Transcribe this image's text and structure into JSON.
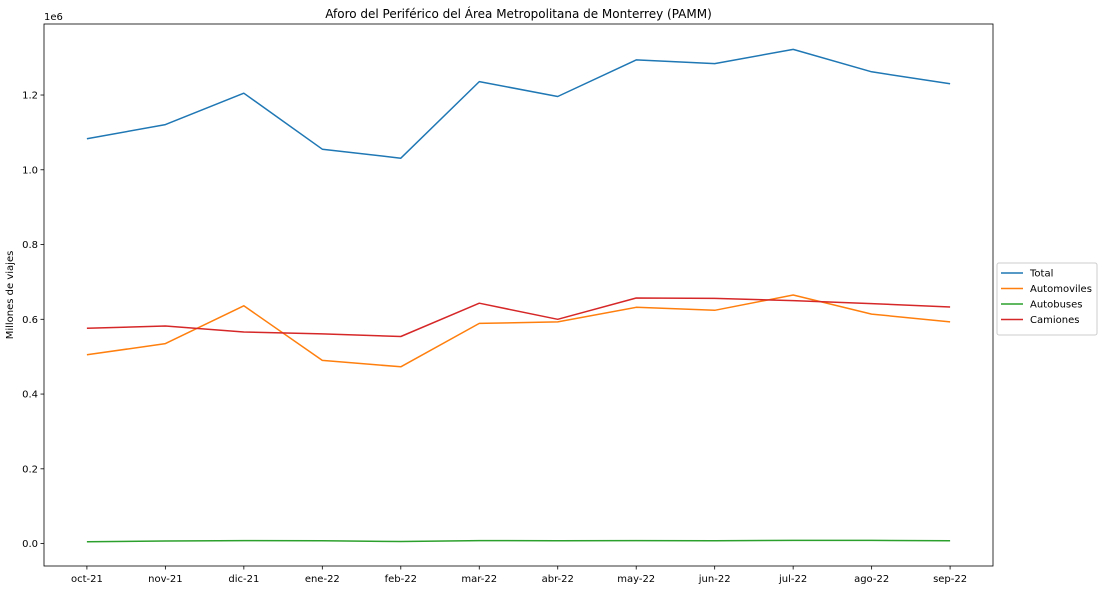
{
  "chart_data": {
    "type": "line",
    "title": "Aforo del Periférico del Área Metropolitana de Monterrey (PAMM)",
    "xlabel": "",
    "ylabel": "Millones de viajes",
    "y_offset_label": "1e6",
    "categories": [
      "oct-21",
      "nov-21",
      "dic-21",
      "ene-22",
      "feb-22",
      "mar-22",
      "abr-22",
      "may-22",
      "jun-22",
      "jul-22",
      "ago-22",
      "sep-22"
    ],
    "ylim": [
      -60000,
      1390000
    ],
    "yticks": [
      0,
      200000,
      400000,
      600000,
      800000,
      1000000,
      1200000
    ],
    "ytick_labels": [
      "0.0",
      "0.2",
      "0.4",
      "0.6",
      "0.8",
      "1.0",
      "1.2"
    ],
    "grid": false,
    "legend_position": "outside-right",
    "series": [
      {
        "name": "Total",
        "color": "#1f77b4",
        "values": [
          1083000,
          1121000,
          1205000,
          1055000,
          1031000,
          1236000,
          1196000,
          1294000,
          1284000,
          1322000,
          1262000,
          1230000
        ]
      },
      {
        "name": "Automoviles",
        "color": "#ff7f0e",
        "values": [
          505000,
          535000,
          636000,
          490000,
          473000,
          589000,
          593000,
          632000,
          624000,
          665000,
          614000,
          593000
        ]
      },
      {
        "name": "Autobuses",
        "color": "#2ca02c",
        "values": [
          5000,
          7000,
          8000,
          7500,
          5500,
          8000,
          7500,
          8000,
          7500,
          8500,
          8500,
          7500
        ]
      },
      {
        "name": "Camiones",
        "color": "#d62728",
        "values": [
          576000,
          582000,
          566000,
          561000,
          554000,
          643000,
          600000,
          657000,
          656000,
          650000,
          642000,
          633000
        ]
      }
    ]
  }
}
